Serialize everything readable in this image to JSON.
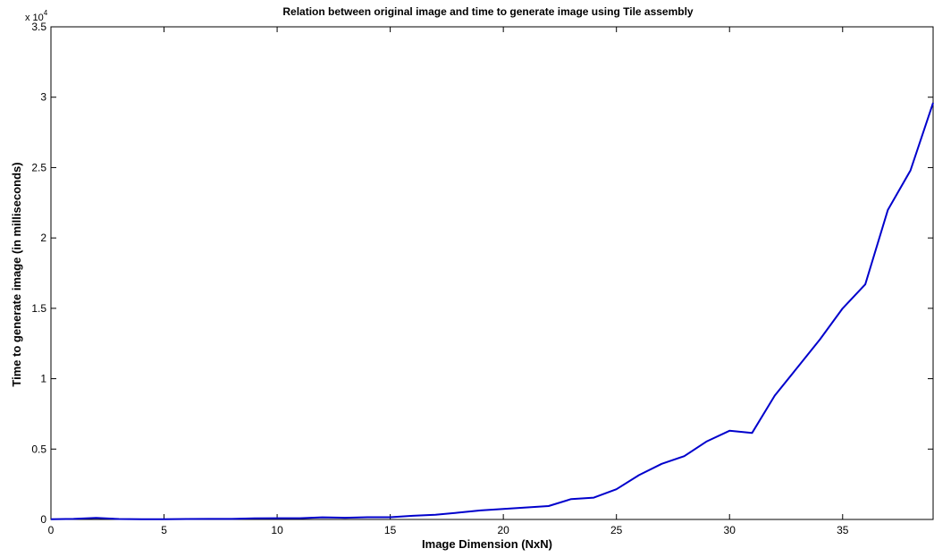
{
  "chart_data": {
    "type": "line",
    "title": "Relation between original image and time to generate image using Tile assembly",
    "xlabel": "Image Dimension (NxN)",
    "ylabel": "Time to generate image (in milliseconds)",
    "y_exponent_label": "x 10",
    "y_exponent_power": "4",
    "xlim": [
      0,
      39
    ],
    "ylim": [
      0,
      35000
    ],
    "x_ticks": [
      0,
      5,
      10,
      15,
      20,
      25,
      30,
      35
    ],
    "x_tick_labels": [
      "0",
      "5",
      "10",
      "15",
      "20",
      "25",
      "30",
      "35"
    ],
    "y_ticks": [
      0,
      5000,
      10000,
      15000,
      20000,
      25000,
      30000,
      35000
    ],
    "y_tick_labels": [
      "0",
      "0.5",
      "1",
      "1.5",
      "2",
      "2.5",
      "3",
      "3.5"
    ],
    "grid": false,
    "line_color": "#0000cc",
    "series": [
      {
        "x": [
          0,
          1,
          2,
          3,
          4,
          5,
          6,
          7,
          8,
          9,
          10,
          11,
          12,
          13,
          14,
          15,
          16,
          17,
          18,
          19,
          20,
          21,
          22,
          23,
          24,
          25,
          26,
          27,
          28,
          29,
          30,
          31,
          32,
          33,
          34,
          35,
          36,
          37,
          38,
          39
        ],
        "values": [
          20,
          40,
          110,
          30,
          20,
          20,
          30,
          40,
          40,
          80,
          90,
          90,
          150,
          120,
          160,
          160,
          260,
          330,
          480,
          640,
          750,
          850,
          950,
          1450,
          1550,
          2150,
          3150,
          3950,
          4500,
          5550,
          6300,
          6150,
          8800,
          10800,
          12800,
          15000,
          16700,
          22000,
          24800,
          29600
        ]
      }
    ]
  }
}
